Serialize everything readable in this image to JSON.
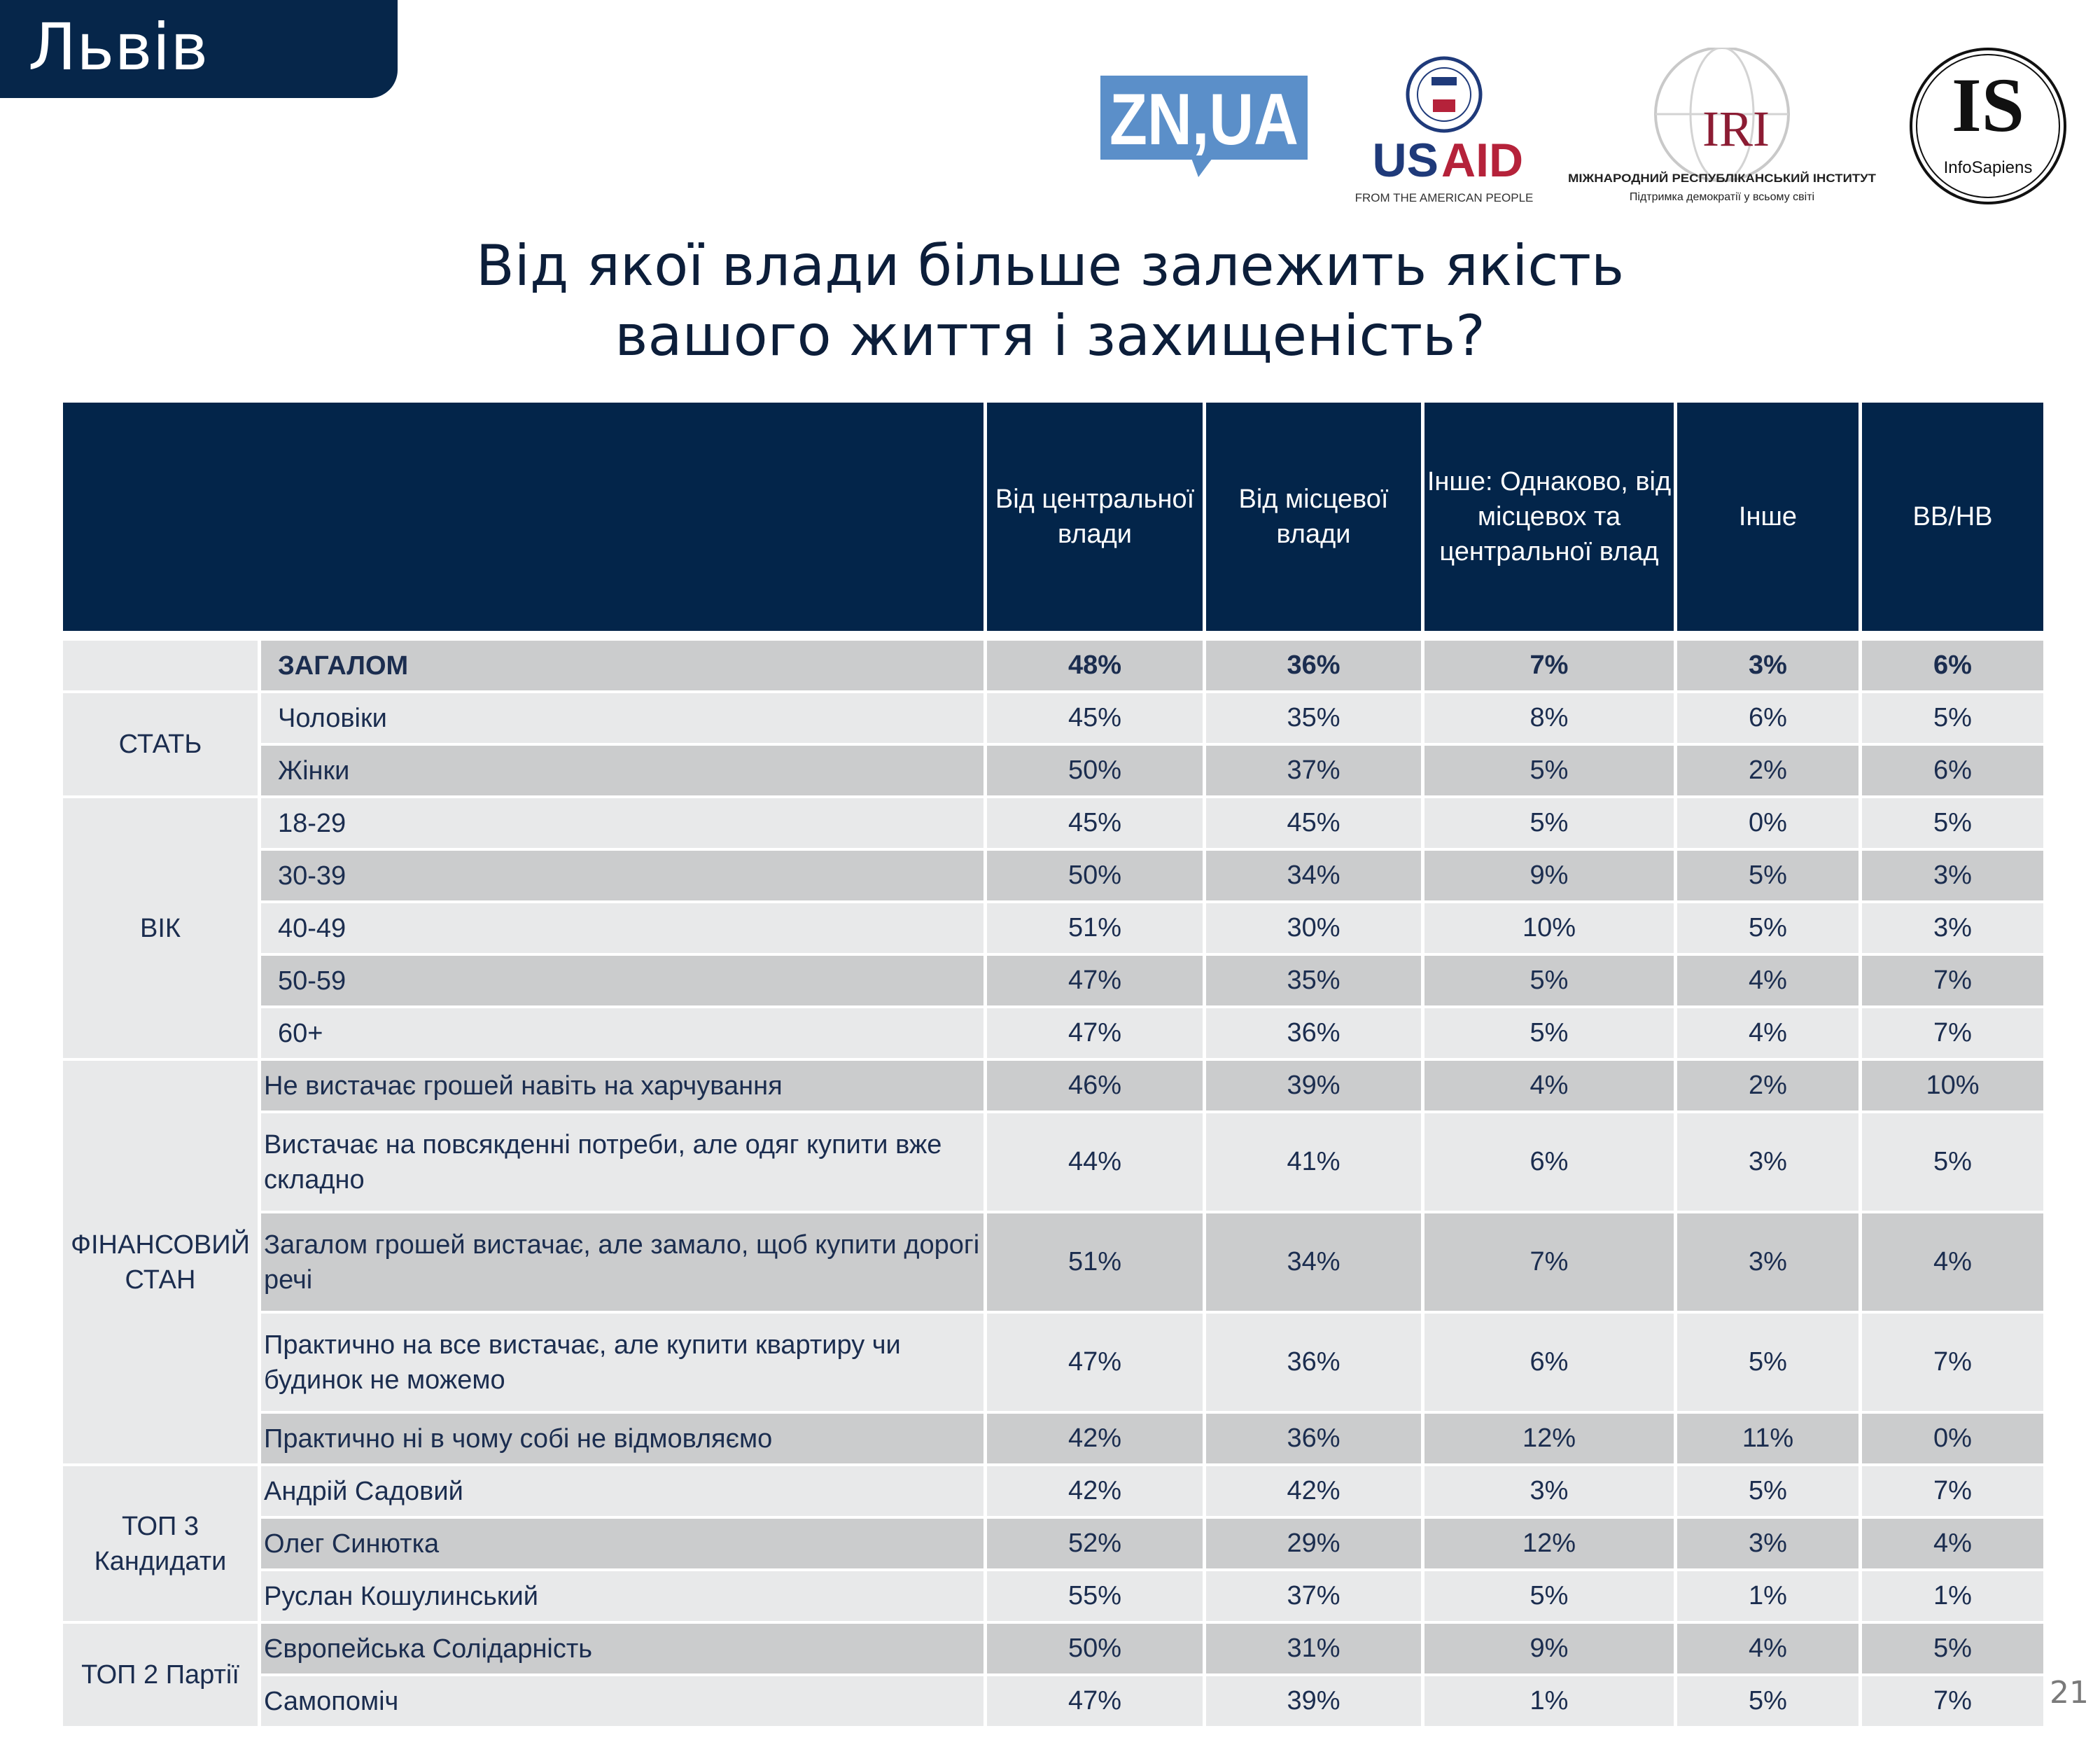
{
  "header": {
    "region_tab": "Львів"
  },
  "logos": {
    "znua": "ZN,UA",
    "usaid": {
      "name_us": "US",
      "name_aid": "AID",
      "tagline": "FROM THE AMERICAN PEOPLE"
    },
    "iri": {
      "name": "IRI",
      "line1": "МІЖНАРОДНИЙ РЕСПУБЛІКАНСЬКИЙ ІНСТИТУТ",
      "line2": "Підтримка демократії у всьому світі"
    },
    "infosapiens": {
      "mark": "IS",
      "name": "InfoSapiens"
    }
  },
  "title": {
    "line1": "Від якої влади більше залежить якість",
    "line2": "вашого життя і захищеність?"
  },
  "table": {
    "columns": [
      "Від центральної влади",
      "Від місцевої влади",
      "Інше: Однаково, від місцевох та центральної влад",
      "Інше",
      "ВВ/НВ"
    ],
    "groups": [
      {
        "name": "",
        "rows": [
          {
            "label": "ЗАГАЛОМ",
            "values": [
              "48%",
              "36%",
              "7%",
              "3%",
              "6%"
            ],
            "bold": true
          }
        ]
      },
      {
        "name": "СТАТЬ",
        "rows": [
          {
            "label": "Чоловіки",
            "values": [
              "45%",
              "35%",
              "8%",
              "6%",
              "5%"
            ]
          },
          {
            "label": "Жінки",
            "values": [
              "50%",
              "37%",
              "5%",
              "2%",
              "6%"
            ]
          }
        ]
      },
      {
        "name": "ВІК",
        "rows": [
          {
            "label": "18-29",
            "values": [
              "45%",
              "45%",
              "5%",
              "0%",
              "5%"
            ]
          },
          {
            "label": "30-39",
            "values": [
              "50%",
              "34%",
              "9%",
              "5%",
              "3%"
            ]
          },
          {
            "label": "40-49",
            "values": [
              "51%",
              "30%",
              "10%",
              "5%",
              "3%"
            ]
          },
          {
            "label": "50-59",
            "values": [
              "47%",
              "35%",
              "5%",
              "4%",
              "7%"
            ]
          },
          {
            "label": "60+",
            "values": [
              "47%",
              "36%",
              "5%",
              "4%",
              "7%"
            ]
          }
        ]
      },
      {
        "name": "ФІНАНСОВИЙ СТАН",
        "rows": [
          {
            "label": "Не вистачає грошей навіть на харчування",
            "values": [
              "46%",
              "39%",
              "4%",
              "2%",
              "10%"
            ]
          },
          {
            "label": "Вистачає на повсякденні потреби, але одяг купити вже складно",
            "values": [
              "44%",
              "41%",
              "6%",
              "3%",
              "5%"
            ],
            "tall": true
          },
          {
            "label": "Загалом грошей вистачає, але замало, щоб купити дорогі речі",
            "values": [
              "51%",
              "34%",
              "7%",
              "3%",
              "4%"
            ],
            "tall": true
          },
          {
            "label": "Практично на все вистачає, але купити квартиру чи будинок не можемо",
            "values": [
              "47%",
              "36%",
              "6%",
              "5%",
              "7%"
            ],
            "tall": true
          },
          {
            "label": "Практично ні в чому собі не відмовляємо",
            "values": [
              "42%",
              "36%",
              "12%",
              "11%",
              "0%"
            ]
          }
        ]
      },
      {
        "name": "ТОП 3 Кандидати",
        "rows": [
          {
            "label": "Андрій Садовий",
            "values": [
              "42%",
              "42%",
              "3%",
              "5%",
              "7%"
            ]
          },
          {
            "label": "Олег Синютка",
            "values": [
              "52%",
              "29%",
              "12%",
              "3%",
              "4%"
            ]
          },
          {
            "label": "Руслан Кошулинський",
            "values": [
              "55%",
              "37%",
              "5%",
              "1%",
              "1%"
            ]
          }
        ]
      },
      {
        "name": "ТОП 2 Партії",
        "rows": [
          {
            "label": "Європейська Солідарність",
            "values": [
              "50%",
              "31%",
              "9%",
              "4%",
              "5%"
            ]
          },
          {
            "label": "Самопоміч",
            "values": [
              "47%",
              "39%",
              "1%",
              "5%",
              "7%"
            ]
          }
        ]
      }
    ]
  },
  "page_number": "21",
  "colors": {
    "navy": "#03254a",
    "row_dark": "#cbcccd",
    "row_light": "#e8e9ea",
    "znua_blue": "#5b8fc9",
    "usaid_blue": "#1f3a7a",
    "usaid_red": "#b5223a",
    "iri_red": "#8c1c33"
  }
}
